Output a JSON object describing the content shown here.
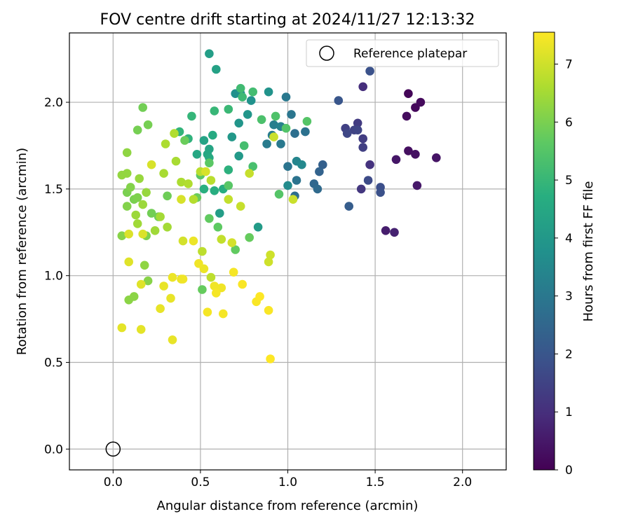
{
  "chart_data": {
    "type": "scatter",
    "title": "FOV centre drift starting at 2024/11/27 12:13:32",
    "xlabel": "Angular distance from reference (arcmin)",
    "ylabel": "Rotation from reference (arcmin)",
    "xlim": [
      -0.25,
      2.25
    ],
    "ylim": [
      -0.12,
      2.4
    ],
    "xticks": [
      0.0,
      0.5,
      1.0,
      1.5,
      2.0
    ],
    "xtick_labels": [
      "0.0",
      "0.5",
      "1.0",
      "1.5",
      "2.0"
    ],
    "yticks": [
      0.0,
      0.5,
      1.0,
      1.5,
      2.0
    ],
    "ytick_labels": [
      "0.0",
      "0.5",
      "1.0",
      "1.5",
      "2.0"
    ],
    "grid": true,
    "legend": {
      "placement": "top-right",
      "entries": [
        "Reference platepar"
      ]
    },
    "reference_point": {
      "name": "Reference platepar",
      "x": 0.0,
      "y": 0.0,
      "marker": "open-circle"
    },
    "colorbar": {
      "label": "Hours from first FF file",
      "colormap": "viridis",
      "range": [
        0,
        7.55
      ],
      "ticks": [
        0,
        1,
        2,
        3,
        4,
        5,
        6,
        7
      ],
      "tick_labels": [
        "0",
        "1",
        "2",
        "3",
        "4",
        "5",
        "6",
        "7"
      ]
    },
    "point_fields": [
      "x",
      "y",
      "hours"
    ],
    "points": [
      [
        1.69,
        2.05,
        0.1
      ],
      [
        1.73,
        1.97,
        0.15
      ],
      [
        1.76,
        2.0,
        0.2
      ],
      [
        1.68,
        1.92,
        0.25
      ],
      [
        1.69,
        1.72,
        0.3
      ],
      [
        1.73,
        1.7,
        0.35
      ],
      [
        1.85,
        1.68,
        0.4
      ],
      [
        1.62,
        1.67,
        0.45
      ],
      [
        1.74,
        1.52,
        0.5
      ],
      [
        1.56,
        1.26,
        0.6
      ],
      [
        1.61,
        1.25,
        0.7
      ],
      [
        1.43,
        2.09,
        1.0
      ],
      [
        1.47,
        1.64,
        1.1
      ],
      [
        1.42,
        1.5,
        1.2
      ],
      [
        1.4,
        1.88,
        1.3
      ],
      [
        1.43,
        1.79,
        1.35
      ],
      [
        1.43,
        1.74,
        1.4
      ],
      [
        1.33,
        1.85,
        1.45
      ],
      [
        1.38,
        1.84,
        1.5
      ],
      [
        1.4,
        1.84,
        1.55
      ],
      [
        1.34,
        1.82,
        1.6
      ],
      [
        1.46,
        1.55,
        1.7
      ],
      [
        1.53,
        1.51,
        1.8
      ],
      [
        1.53,
        1.48,
        1.85
      ],
      [
        1.47,
        2.18,
        1.9
      ],
      [
        1.29,
        2.01,
        2.0
      ],
      [
        1.35,
        1.4,
        2.2
      ],
      [
        1.2,
        1.64,
        2.3
      ],
      [
        1.18,
        1.6,
        2.4
      ],
      [
        1.15,
        1.53,
        2.5
      ],
      [
        1.17,
        1.5,
        2.6
      ],
      [
        1.04,
        1.46,
        2.7
      ],
      [
        1.04,
        1.82,
        2.75
      ],
      [
        1.1,
        1.83,
        2.8
      ],
      [
        1.05,
        1.55,
        2.85
      ],
      [
        1.0,
        1.63,
        2.9
      ],
      [
        1.02,
        1.93,
        2.95
      ],
      [
        0.99,
        2.03,
        3.0
      ],
      [
        0.96,
        1.76,
        3.05
      ],
      [
        0.88,
        1.76,
        3.1
      ],
      [
        0.91,
        1.81,
        3.15
      ],
      [
        0.92,
        1.87,
        3.2
      ],
      [
        0.96,
        1.86,
        3.3
      ],
      [
        1.05,
        1.66,
        3.4
      ],
      [
        1.08,
        1.64,
        3.5
      ],
      [
        1.0,
        1.52,
        3.6
      ],
      [
        0.73,
        2.05,
        3.7
      ],
      [
        0.7,
        2.05,
        3.75
      ],
      [
        0.79,
        2.01,
        3.8
      ],
      [
        0.89,
        2.06,
        3.85
      ],
      [
        0.72,
        1.88,
        3.9
      ],
      [
        0.77,
        1.93,
        3.95
      ],
      [
        0.68,
        1.8,
        4.0
      ],
      [
        0.72,
        1.69,
        4.05
      ],
      [
        0.83,
        1.28,
        4.1
      ],
      [
        0.61,
        1.36,
        4.15
      ],
      [
        0.55,
        2.28,
        4.2
      ],
      [
        0.59,
        2.19,
        4.3
      ],
      [
        0.52,
        1.78,
        4.35
      ],
      [
        0.55,
        1.73,
        4.4
      ],
      [
        0.54,
        1.7,
        4.45
      ],
      [
        0.48,
        1.7,
        4.5
      ],
      [
        0.55,
        1.68,
        4.55
      ],
      [
        0.57,
        1.81,
        4.6
      ],
      [
        0.63,
        1.5,
        4.65
      ],
      [
        0.58,
        1.49,
        4.7
      ],
      [
        0.52,
        1.5,
        4.75
      ],
      [
        0.66,
        1.61,
        4.8
      ],
      [
        0.43,
        1.79,
        4.85
      ],
      [
        0.38,
        1.83,
        4.9
      ],
      [
        0.45,
        1.92,
        4.95
      ],
      [
        0.58,
        1.95,
        5.0
      ],
      [
        0.66,
        1.96,
        5.05
      ],
      [
        0.74,
        2.03,
        5.1
      ],
      [
        0.73,
        2.08,
        5.15
      ],
      [
        0.8,
        2.06,
        5.2
      ],
      [
        0.75,
        1.75,
        5.25
      ],
      [
        0.8,
        1.63,
        5.3
      ],
      [
        0.85,
        1.9,
        5.35
      ],
      [
        0.93,
        1.92,
        5.4
      ],
      [
        0.99,
        1.85,
        5.45
      ],
      [
        0.95,
        1.47,
        5.5
      ],
      [
        1.11,
        1.89,
        5.5
      ],
      [
        0.66,
        1.52,
        5.55
      ],
      [
        0.55,
        1.65,
        5.6
      ],
      [
        0.5,
        1.58,
        5.6
      ],
      [
        0.6,
        1.28,
        5.65
      ],
      [
        0.55,
        1.33,
        5.7
      ],
      [
        0.7,
        1.15,
        5.7
      ],
      [
        0.78,
        1.22,
        5.75
      ],
      [
        0.51,
        0.92,
        5.75
      ],
      [
        0.48,
        1.45,
        5.8
      ],
      [
        0.41,
        1.78,
        5.8
      ],
      [
        0.31,
        1.46,
        5.85
      ],
      [
        0.26,
        1.34,
        5.85
      ],
      [
        0.22,
        1.36,
        5.9
      ],
      [
        0.17,
        1.97,
        5.9
      ],
      [
        0.2,
        1.87,
        5.95
      ],
      [
        0.14,
        1.84,
        5.95
      ],
      [
        0.08,
        1.48,
        6.0
      ],
      [
        0.12,
        1.44,
        6.0
      ],
      [
        0.19,
        1.23,
        6.05
      ],
      [
        0.14,
        1.45,
        6.05
      ],
      [
        0.1,
        1.51,
        6.1
      ],
      [
        0.08,
        1.4,
        6.1
      ],
      [
        0.05,
        1.23,
        6.15
      ],
      [
        0.2,
        0.97,
        6.15
      ],
      [
        0.12,
        0.88,
        6.2
      ],
      [
        0.09,
        0.86,
        6.2
      ],
      [
        0.18,
        1.06,
        6.25
      ],
      [
        0.08,
        1.71,
        6.25
      ],
      [
        0.05,
        1.58,
        6.3
      ],
      [
        0.08,
        1.59,
        6.3
      ],
      [
        0.15,
        1.56,
        6.35
      ],
      [
        0.19,
        1.48,
        6.35
      ],
      [
        0.17,
        1.41,
        6.4
      ],
      [
        0.13,
        1.35,
        6.4
      ],
      [
        0.14,
        1.3,
        6.45
      ],
      [
        0.24,
        1.26,
        6.45
      ],
      [
        0.27,
        1.34,
        6.5
      ],
      [
        0.31,
        1.28,
        6.5
      ],
      [
        0.29,
        1.59,
        6.55
      ],
      [
        0.36,
        1.66,
        6.55
      ],
      [
        0.39,
        1.54,
        6.6
      ],
      [
        0.3,
        1.76,
        6.6
      ],
      [
        0.35,
        1.82,
        6.65
      ],
      [
        0.43,
        1.53,
        6.65
      ],
      [
        0.46,
        1.44,
        6.7
      ],
      [
        0.5,
        1.6,
        6.75
      ],
      [
        0.56,
        1.55,
        6.75
      ],
      [
        0.51,
        1.14,
        6.8
      ],
      [
        0.56,
        0.99,
        6.8
      ],
      [
        0.62,
        1.21,
        6.85
      ],
      [
        0.66,
        1.44,
        6.85
      ],
      [
        0.73,
        1.4,
        6.9
      ],
      [
        0.78,
        1.59,
        6.9
      ],
      [
        0.92,
        1.8,
        6.95
      ],
      [
        1.03,
        1.44,
        6.95
      ],
      [
        0.9,
        1.12,
        7.0
      ],
      [
        0.89,
        1.08,
        7.0
      ],
      [
        0.68,
        1.19,
        7.05
      ],
      [
        0.4,
        1.2,
        7.05
      ],
      [
        0.39,
        1.44,
        7.1
      ],
      [
        0.53,
        1.6,
        7.1
      ],
      [
        0.22,
        1.64,
        7.1
      ],
      [
        0.09,
        1.24,
        7.15
      ],
      [
        0.17,
        1.24,
        7.15
      ],
      [
        0.09,
        1.08,
        7.2
      ],
      [
        0.16,
        0.95,
        7.2
      ],
      [
        0.05,
        0.7,
        7.25
      ],
      [
        0.16,
        0.69,
        7.25
      ],
      [
        0.27,
        0.81,
        7.3
      ],
      [
        0.34,
        0.63,
        7.3
      ],
      [
        0.33,
        0.87,
        7.3
      ],
      [
        0.39,
        0.98,
        7.35
      ],
      [
        0.46,
        1.2,
        7.35
      ],
      [
        0.52,
        1.04,
        7.35
      ],
      [
        0.49,
        1.07,
        7.4
      ],
      [
        0.58,
        0.94,
        7.4
      ],
      [
        0.62,
        0.93,
        7.4
      ],
      [
        0.54,
        0.79,
        7.45
      ],
      [
        0.63,
        0.78,
        7.45
      ],
      [
        0.69,
        1.02,
        7.45
      ],
      [
        0.74,
        0.95,
        7.5
      ],
      [
        0.82,
        0.85,
        7.5
      ],
      [
        0.89,
        0.8,
        7.5
      ],
      [
        0.9,
        0.52,
        7.55
      ],
      [
        0.84,
        0.88,
        7.55
      ],
      [
        0.59,
        0.9,
        7.45
      ],
      [
        0.4,
        0.98,
        7.4
      ],
      [
        0.34,
        0.99,
        7.35
      ],
      [
        0.29,
        0.94,
        7.3
      ]
    ]
  }
}
